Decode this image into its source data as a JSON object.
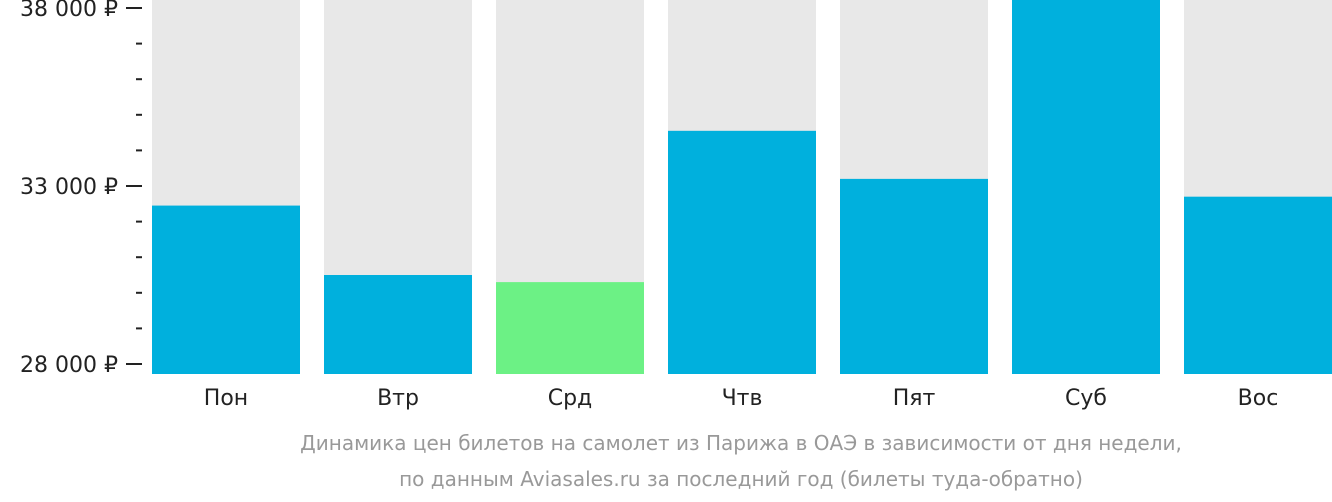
{
  "chart_data": {
    "type": "bar",
    "categories": [
      "Пон",
      "Втр",
      "Срд",
      "Чтв",
      "Пят",
      "Суб",
      "Вос"
    ],
    "values": [
      32450,
      30500,
      30300,
      34550,
      33200,
      38000,
      32700
    ],
    "ylim": [
      28000,
      38000
    ],
    "y_major_ticks": [
      28000,
      33000,
      38000
    ],
    "y_tick_labels": [
      "28 000 ₽",
      "33 000 ₽",
      "38 000 ₽"
    ],
    "y_minor_step": 1000,
    "highlight_index": 2,
    "colors": {
      "bar": "#00b0dd",
      "highlight": "#6cf185",
      "background_bar": "#e8e8e8",
      "axis": "#222222",
      "caption": "#999999"
    },
    "grid": false,
    "legend": "none"
  },
  "caption": {
    "line1": "Динамика цен билетов на самолет из Парижа в ОАЭ в зависимости от дня недели,",
    "line2": "по данным Aviasales.ru за последний год (билеты туда-обратно)"
  }
}
